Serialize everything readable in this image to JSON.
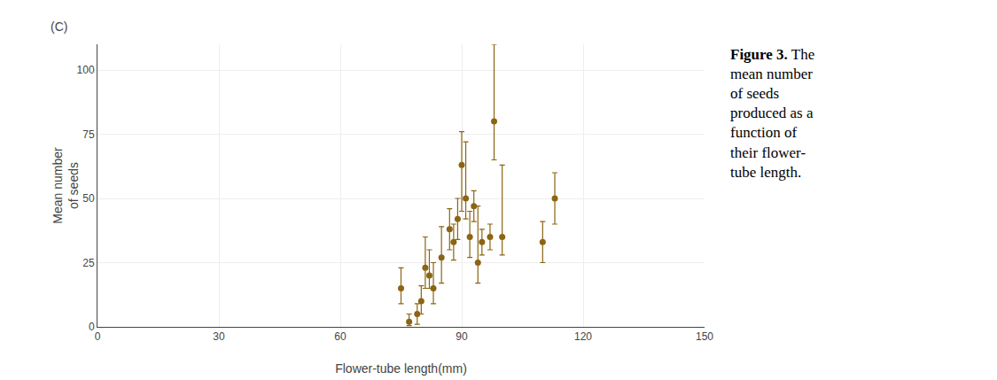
{
  "chart_data": {
    "type": "scatter",
    "xlabel": "Flower-tube length(mm)",
    "ylabel": "Mean number\nof seeds",
    "annotations": [
      "(C)",
      "Figure 3.",
      "The",
      "mean number",
      "of seeds",
      "produced as a",
      "function of",
      "their flower-",
      "tube length."
    ],
    "x": [
      75,
      77,
      79,
      80,
      81,
      82,
      83,
      85,
      87,
      88,
      89,
      90,
      91,
      92,
      93,
      94,
      95,
      97,
      98,
      100,
      110,
      113
    ],
    "values": [
      15,
      2,
      5,
      10,
      23,
      20,
      15,
      27,
      38,
      33,
      42,
      63,
      50,
      35,
      47,
      25,
      33,
      35,
      80,
      35,
      33,
      50
    ],
    "yerr_lo": [
      6,
      1.5,
      4,
      5,
      8,
      5,
      6,
      10,
      8,
      7,
      8,
      18,
      8,
      8,
      6,
      8,
      5,
      5,
      15,
      7,
      8,
      10
    ],
    "yerr_hi": [
      8,
      3,
      4,
      6,
      12,
      10,
      10,
      12,
      8,
      7,
      8,
      13,
      22,
      10,
      6,
      22,
      5,
      5,
      30,
      28,
      8,
      10
    ],
    "color": "#8B6513",
    "marker": "circle",
    "xlim": [
      0,
      150
    ],
    "ylim": [
      0,
      110
    ],
    "xticks": [
      0,
      30,
      60,
      90,
      120,
      150
    ],
    "yticks": [
      0,
      25,
      50,
      75,
      100
    ],
    "grid": true
  }
}
